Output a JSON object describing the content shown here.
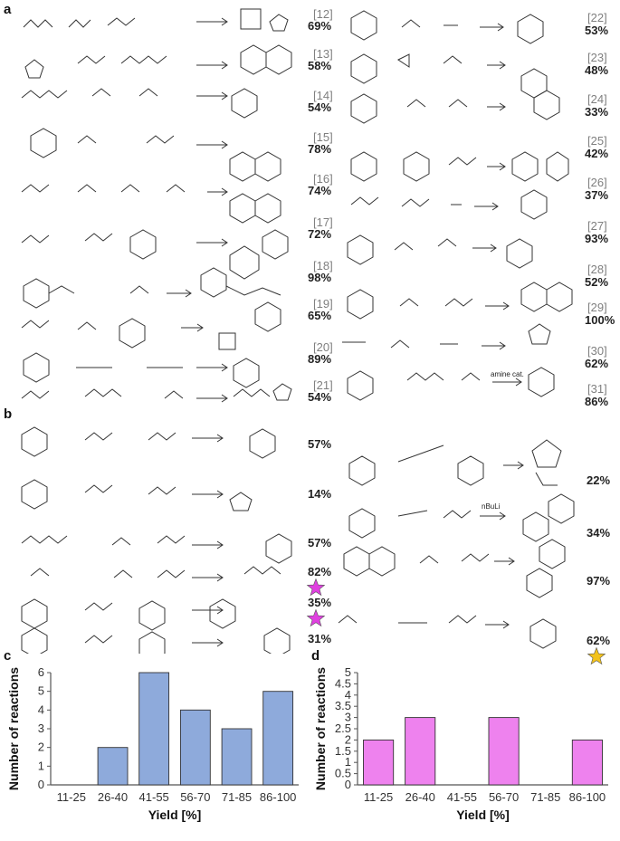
{
  "panels": {
    "a": "a",
    "b": "b",
    "c": "c",
    "d": "d"
  },
  "panel_a": {
    "left_rows": [],
    "right_rows": [
      {
        "ref_in": "[12]",
        "yield_in": "69%",
        "ref_out": "[22]",
        "yield_out": "53%"
      },
      {
        "ref_in": "[13]",
        "yield_in": "58%",
        "ref_out": "[23]",
        "yield_out": "48%"
      },
      {
        "ref_in": "[14]",
        "yield_in": "54%",
        "ref_out": "[24]",
        "yield_out": "33%"
      },
      {
        "ref_in": "[15]",
        "yield_in": "78%",
        "ref_out": "[25]",
        "yield_out": "42%"
      },
      {
        "ref_in": "[16]",
        "yield_in": "74%",
        "ref_out": "[26]",
        "yield_out": "37%"
      },
      {
        "ref_in": "[17]",
        "yield_in": "72%",
        "ref_out": "[27]",
        "yield_out": "93%"
      },
      {
        "ref_in": "[18]",
        "yield_in": "98%",
        "ref_out": "[28]",
        "yield_out": "52%"
      },
      {
        "ref_in": "[19]",
        "yield_in": "65%",
        "ref_out": "[29]",
        "yield_out": "100%"
      },
      {
        "ref_in": "[20]",
        "yield_in": "89%",
        "ref_out": "[30]",
        "yield_out": "62%"
      },
      {
        "ref_in": "[21]",
        "yield_in": "54%",
        "ref_out": "[31]",
        "yield_out": "86%"
      }
    ],
    "labels": {
      "amine_cat": "amine cat.",
      "nbuli": "nBuLi"
    }
  },
  "panel_b": {
    "left_yields": [
      "57%",
      "14%",
      "57%",
      "82%",
      "35%",
      "31%"
    ],
    "right_yields": [
      "22%",
      "34%",
      "97%",
      "62%"
    ],
    "star_color_pink": "#e040e0",
    "star_color_gold": "#f2c21b"
  },
  "chart_data": [
    {
      "type": "bar",
      "panel": "c",
      "categories": [
        "11-25",
        "26-40",
        "41-55",
        "56-70",
        "71-85",
        "86-100"
      ],
      "values": [
        0,
        2,
        6,
        4,
        3,
        5
      ],
      "xlabel": "Yield [%]",
      "ylabel": "Number of reactions",
      "ylim": [
        0,
        6
      ],
      "yticks": [
        0,
        1,
        2,
        3,
        4,
        5,
        6
      ],
      "bar_color": "#8eaadb",
      "grid": false
    },
    {
      "type": "bar",
      "panel": "d",
      "categories": [
        "11-25",
        "26-40",
        "41-55",
        "56-70",
        "71-85",
        "86-100"
      ],
      "values": [
        2,
        3,
        0,
        3,
        0,
        2
      ],
      "xlabel": "Yield [%]",
      "ylabel": "Number of reactions",
      "ylim": [
        0,
        5
      ],
      "yticks": [
        0,
        0.5,
        1,
        1.5,
        2,
        2.5,
        3,
        3.5,
        4,
        4.5,
        5
      ],
      "bar_color": "#ee82ee",
      "grid": false
    }
  ]
}
